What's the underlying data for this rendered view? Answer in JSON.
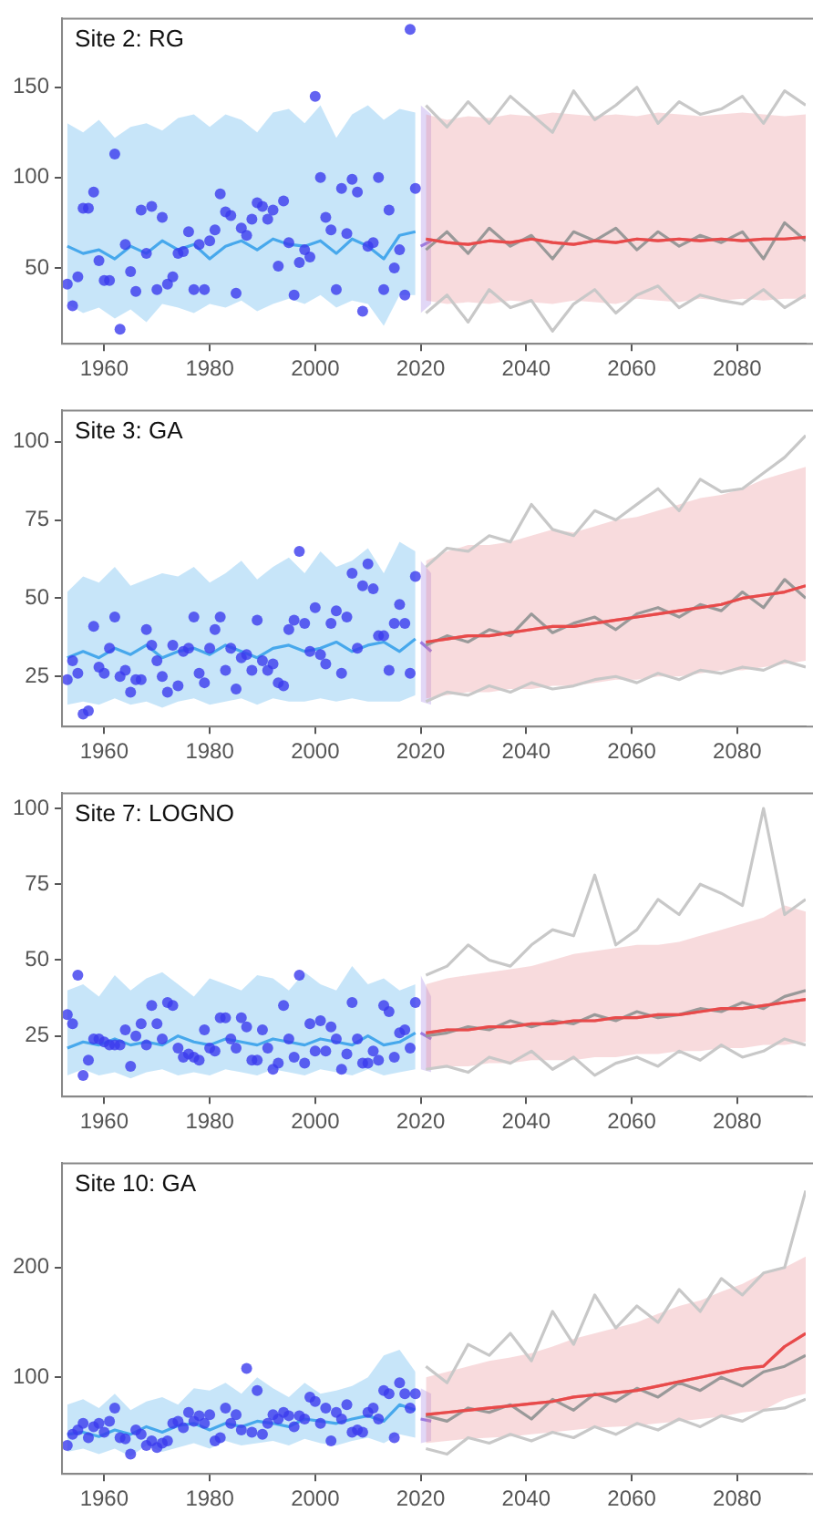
{
  "chart_data": [
    {
      "type": "line",
      "title": "Site 2: RG",
      "xlim": [
        1952,
        2093
      ],
      "ylim": [
        8,
        188
      ],
      "xticks": [
        1960,
        1980,
        2000,
        2020,
        2040,
        2060,
        2080
      ],
      "yticks": [
        50,
        100,
        150
      ],
      "series": [
        {
          "type": "line",
          "color": "#47a8ec",
          "x": [
            1953,
            1956,
            1959,
            1962,
            1965,
            1968,
            1971,
            1974,
            1977,
            1980,
            1983,
            1986,
            1989,
            1992,
            1995,
            1998,
            2001,
            2004,
            2007,
            2010,
            2013,
            2016,
            2019
          ],
          "values": [
            62,
            58,
            60,
            55,
            62,
            58,
            65,
            60,
            63,
            55,
            62,
            65,
            60,
            66,
            63,
            62,
            65,
            58,
            66,
            62,
            55,
            68,
            70
          ],
          "lower": [
            30,
            25,
            28,
            22,
            27,
            20,
            30,
            28,
            25,
            30,
            28,
            32,
            26,
            30,
            33,
            30,
            35,
            28,
            32,
            30,
            18,
            35,
            35
          ],
          "upper": [
            130,
            125,
            132,
            122,
            128,
            130,
            126,
            133,
            135,
            128,
            135,
            132,
            125,
            136,
            138,
            130,
            140,
            122,
            135,
            140,
            132,
            138,
            136
          ]
        },
        {
          "type": "scatter",
          "marker": "circle",
          "color": "#3b3bee",
          "x": [
            1953,
            1954,
            1955,
            1956,
            1957,
            1958,
            1959,
            1960,
            1961,
            1962,
            1963,
            1964,
            1965,
            1966,
            1967,
            1968,
            1969,
            1970,
            1971,
            1972,
            1973,
            1974,
            1975,
            1976,
            1977,
            1978,
            1979,
            1980,
            1981,
            1982,
            1983,
            1984,
            1985,
            1986,
            1987,
            1988,
            1989,
            1990,
            1991,
            1992,
            1993,
            1994,
            1995,
            1996,
            1997,
            1998,
            1999,
            2000,
            2001,
            2002,
            2003,
            2004,
            2005,
            2006,
            2007,
            2008,
            2009,
            2010,
            2011,
            2012,
            2013,
            2014,
            2015,
            2016,
            2017,
            2018,
            2019
          ],
          "values": [
            41,
            29,
            45,
            83,
            83,
            92,
            54,
            43,
            43,
            113,
            16,
            63,
            48,
            37,
            82,
            58,
            84,
            38,
            78,
            41,
            45,
            58,
            59,
            70,
            38,
            63,
            38,
            65,
            71,
            91,
            81,
            79,
            36,
            72,
            68,
            77,
            86,
            84,
            77,
            82,
            51,
            87,
            64,
            35,
            53,
            60,
            56,
            145,
            100,
            78,
            71,
            38,
            94,
            69,
            99,
            92,
            26,
            62,
            64,
            100,
            38,
            82,
            50,
            60,
            35,
            182,
            94
          ]
        },
        {
          "type": "line",
          "color": "#9b7be0",
          "x": [
            2020,
            2022
          ],
          "values": [
            62,
            65
          ],
          "lower": [
            25,
            30
          ],
          "upper": [
            140,
            135
          ]
        },
        {
          "type": "line",
          "color": "#e8888f",
          "x": [
            2021,
            2025,
            2029,
            2033,
            2037,
            2041,
            2045,
            2049,
            2053,
            2057,
            2061,
            2065,
            2069,
            2073,
            2077,
            2081,
            2085,
            2089,
            2093
          ],
          "values": [
            66,
            64,
            63,
            65,
            64,
            66,
            64,
            63,
            65,
            64,
            66,
            65,
            66,
            65,
            66,
            65,
            66,
            66,
            67
          ],
          "lower": [
            32,
            30,
            31,
            30,
            32,
            31,
            30,
            32,
            31,
            30,
            33,
            32,
            31,
            33,
            32,
            33,
            32,
            33,
            33
          ],
          "upper": [
            135,
            132,
            134,
            133,
            135,
            134,
            136,
            135,
            134,
            135,
            134,
            136,
            135,
            134,
            135,
            136,
            135,
            134,
            135
          ]
        },
        {
          "type": "line",
          "color": "#c8c8c8",
          "x": [
            2021,
            2025,
            2029,
            2033,
            2037,
            2041,
            2045,
            2049,
            2053,
            2057,
            2061,
            2065,
            2069,
            2073,
            2077,
            2081,
            2085,
            2089,
            2093
          ],
          "values": [
            140,
            128,
            142,
            130,
            145,
            135,
            125,
            148,
            132,
            140,
            150,
            130,
            142,
            135,
            138,
            145,
            130,
            148,
            140
          ]
        },
        {
          "type": "line",
          "color": "#c8c8c8",
          "x": [
            2021,
            2025,
            2029,
            2033,
            2037,
            2041,
            2045,
            2049,
            2053,
            2057,
            2061,
            2065,
            2069,
            2073,
            2077,
            2081,
            2085,
            2089,
            2093
          ],
          "values": [
            25,
            35,
            20,
            38,
            28,
            32,
            15,
            30,
            38,
            25,
            35,
            40,
            28,
            35,
            32,
            30,
            38,
            28,
            35
          ]
        },
        {
          "type": "line",
          "color": "#999999",
          "x": [
            2021,
            2025,
            2029,
            2033,
            2037,
            2041,
            2045,
            2049,
            2053,
            2057,
            2061,
            2065,
            2069,
            2073,
            2077,
            2081,
            2085,
            2089,
            2093
          ],
          "values": [
            60,
            70,
            58,
            72,
            62,
            68,
            55,
            70,
            65,
            72,
            60,
            70,
            62,
            68,
            64,
            70,
            55,
            75,
            65
          ]
        },
        {
          "type": "line",
          "color": "#e84a4a",
          "x": [
            2021,
            2025,
            2029,
            2033,
            2037,
            2041,
            2045,
            2049,
            2053,
            2057,
            2061,
            2065,
            2069,
            2073,
            2077,
            2081,
            2085,
            2089,
            2093
          ],
          "values": [
            66,
            64,
            63,
            65,
            64,
            66,
            64,
            63,
            65,
            64,
            66,
            65,
            66,
            65,
            66,
            65,
            66,
            66,
            67
          ]
        }
      ]
    },
    {
      "type": "line",
      "title": "Site 3: GA",
      "xlim": [
        1952,
        2093
      ],
      "ylim": [
        9,
        110
      ],
      "xticks": [
        1960,
        1980,
        2000,
        2020,
        2040,
        2060,
        2080
      ],
      "yticks": [
        25,
        50,
        75,
        100
      ],
      "series": [
        {
          "type": "line",
          "color": "#47a8ec",
          "x": [
            1953,
            1956,
            1959,
            1962,
            1965,
            1968,
            1971,
            1974,
            1977,
            1980,
            1983,
            1986,
            1989,
            1992,
            1995,
            1998,
            2001,
            2004,
            2007,
            2010,
            2013,
            2016,
            2019
          ],
          "values": [
            31,
            33,
            31,
            34,
            32,
            35,
            31,
            33,
            34,
            32,
            35,
            33,
            31,
            34,
            35,
            33,
            34,
            36,
            33,
            35,
            36,
            33,
            37
          ],
          "lower": [
            16,
            17,
            16,
            18,
            16,
            17,
            15,
            17,
            18,
            16,
            17,
            18,
            16,
            18,
            17,
            17,
            18,
            17,
            18,
            17,
            17,
            17,
            19
          ],
          "upper": [
            52,
            57,
            55,
            60,
            54,
            56,
            58,
            57,
            60,
            55,
            58,
            62,
            56,
            60,
            63,
            58,
            65,
            60,
            62,
            66,
            58,
            68,
            65
          ]
        },
        {
          "type": "scatter",
          "marker": "circle",
          "color": "#3b3bee",
          "x": [
            1953,
            1954,
            1955,
            1956,
            1957,
            1958,
            1959,
            1960,
            1961,
            1962,
            1963,
            1964,
            1965,
            1966,
            1967,
            1968,
            1969,
            1970,
            1971,
            1972,
            1973,
            1974,
            1975,
            1976,
            1977,
            1978,
            1979,
            1980,
            1981,
            1982,
            1983,
            1984,
            1985,
            1986,
            1987,
            1988,
            1989,
            1990,
            1991,
            1992,
            1993,
            1994,
            1995,
            1996,
            1997,
            1998,
            1999,
            2000,
            2001,
            2002,
            2003,
            2004,
            2005,
            2006,
            2007,
            2008,
            2009,
            2010,
            2011,
            2012,
            2013,
            2014,
            2015,
            2016,
            2017,
            2018,
            2019
          ],
          "values": [
            24,
            30,
            26,
            13,
            14,
            41,
            28,
            26,
            34,
            44,
            25,
            27,
            20,
            24,
            24,
            40,
            35,
            30,
            25,
            20,
            35,
            22,
            33,
            34,
            44,
            26,
            23,
            34,
            40,
            44,
            27,
            34,
            21,
            31,
            32,
            27,
            43,
            30,
            27,
            29,
            23,
            22,
            40,
            43,
            65,
            42,
            33,
            47,
            32,
            29,
            42,
            46,
            26,
            44,
            58,
            34,
            54,
            61,
            53,
            38,
            38,
            27,
            42,
            48,
            42,
            26,
            57
          ]
        },
        {
          "type": "line",
          "color": "#9b7be0",
          "x": [
            2020,
            2022
          ],
          "values": [
            36,
            33
          ],
          "lower": [
            17,
            16
          ],
          "upper": [
            62,
            58
          ]
        },
        {
          "type": "line",
          "color": "#e8888f",
          "x": [
            2021,
            2025,
            2029,
            2033,
            2037,
            2041,
            2045,
            2049,
            2053,
            2057,
            2061,
            2065,
            2069,
            2073,
            2077,
            2081,
            2085,
            2089,
            2093
          ],
          "values": [
            36,
            37,
            38,
            38,
            39,
            40,
            41,
            41,
            42,
            43,
            44,
            45,
            46,
            47,
            48,
            50,
            51,
            52,
            54
          ],
          "lower": [
            18,
            19,
            20,
            20,
            21,
            21,
            22,
            22,
            23,
            24,
            24,
            25,
            25,
            26,
            27,
            27,
            28,
            29,
            30
          ],
          "upper": [
            62,
            65,
            67,
            67,
            68,
            70,
            72,
            71,
            73,
            75,
            76,
            78,
            80,
            82,
            83,
            85,
            88,
            90,
            92
          ]
        },
        {
          "type": "line",
          "color": "#c8c8c8",
          "x": [
            2021,
            2025,
            2029,
            2033,
            2037,
            2041,
            2045,
            2049,
            2053,
            2057,
            2061,
            2065,
            2069,
            2073,
            2077,
            2081,
            2085,
            2089,
            2093
          ],
          "values": [
            60,
            66,
            65,
            70,
            68,
            80,
            72,
            70,
            78,
            75,
            80,
            85,
            78,
            88,
            84,
            85,
            90,
            95,
            102
          ]
        },
        {
          "type": "line",
          "color": "#c8c8c8",
          "x": [
            2021,
            2025,
            2029,
            2033,
            2037,
            2041,
            2045,
            2049,
            2053,
            2057,
            2061,
            2065,
            2069,
            2073,
            2077,
            2081,
            2085,
            2089,
            2093
          ],
          "values": [
            17,
            20,
            19,
            22,
            20,
            23,
            21,
            22,
            24,
            25,
            23,
            26,
            24,
            27,
            26,
            28,
            27,
            30,
            28
          ]
        },
        {
          "type": "line",
          "color": "#999999",
          "x": [
            2021,
            2025,
            2029,
            2033,
            2037,
            2041,
            2045,
            2049,
            2053,
            2057,
            2061,
            2065,
            2069,
            2073,
            2077,
            2081,
            2085,
            2089,
            2093
          ],
          "values": [
            35,
            38,
            36,
            40,
            38,
            45,
            39,
            42,
            44,
            40,
            45,
            47,
            44,
            48,
            46,
            52,
            47,
            56,
            50
          ]
        },
        {
          "type": "line",
          "color": "#e84a4a",
          "x": [
            2021,
            2025,
            2029,
            2033,
            2037,
            2041,
            2045,
            2049,
            2053,
            2057,
            2061,
            2065,
            2069,
            2073,
            2077,
            2081,
            2085,
            2089,
            2093
          ],
          "values": [
            36,
            37,
            38,
            38,
            39,
            40,
            41,
            41,
            42,
            43,
            44,
            45,
            46,
            47,
            48,
            50,
            51,
            52,
            54
          ]
        }
      ]
    },
    {
      "type": "line",
      "title": "Site 7: LOGNO",
      "xlim": [
        1952,
        2093
      ],
      "ylim": [
        5,
        105
      ],
      "xticks": [
        1960,
        1980,
        2000,
        2020,
        2040,
        2060,
        2080
      ],
      "yticks": [
        25,
        50,
        75,
        100
      ],
      "series": [
        {
          "type": "line",
          "color": "#47a8ec",
          "x": [
            1953,
            1956,
            1959,
            1962,
            1965,
            1968,
            1971,
            1974,
            1977,
            1980,
            1983,
            1986,
            1989,
            1992,
            1995,
            1998,
            2001,
            2004,
            2007,
            2010,
            2013,
            2016,
            2019
          ],
          "values": [
            21,
            23,
            22,
            24,
            22,
            23,
            22,
            25,
            23,
            22,
            24,
            23,
            22,
            24,
            23,
            22,
            24,
            23,
            22,
            25,
            22,
            23,
            26
          ],
          "lower": [
            12,
            14,
            12,
            13,
            11,
            13,
            14,
            12,
            13,
            12,
            14,
            13,
            12,
            14,
            13,
            12,
            14,
            13,
            12,
            14,
            12,
            13,
            14
          ],
          "upper": [
            40,
            42,
            38,
            45,
            40,
            44,
            46,
            42,
            38,
            44,
            42,
            40,
            45,
            44,
            40,
            46,
            42,
            40,
            48,
            42,
            44,
            40,
            42
          ]
        },
        {
          "type": "scatter",
          "marker": "circle",
          "color": "#3b3bee",
          "x": [
            1953,
            1954,
            1955,
            1956,
            1957,
            1958,
            1959,
            1960,
            1961,
            1962,
            1963,
            1964,
            1965,
            1966,
            1967,
            1968,
            1969,
            1970,
            1971,
            1972,
            1973,
            1974,
            1975,
            1976,
            1977,
            1978,
            1979,
            1980,
            1981,
            1982,
            1983,
            1984,
            1985,
            1986,
            1987,
            1988,
            1989,
            1990,
            1991,
            1992,
            1993,
            1994,
            1995,
            1996,
            1997,
            1998,
            1999,
            2000,
            2001,
            2002,
            2003,
            2004,
            2005,
            2006,
            2007,
            2008,
            2009,
            2010,
            2011,
            2012,
            2013,
            2014,
            2015,
            2016,
            2017,
            2018,
            2019
          ],
          "values": [
            32,
            29,
            45,
            12,
            17,
            24,
            24,
            23,
            22,
            22,
            22,
            27,
            15,
            25,
            29,
            22,
            35,
            29,
            24,
            36,
            35,
            21,
            18,
            19,
            18,
            17,
            27,
            21,
            20,
            31,
            31,
            24,
            21,
            31,
            28,
            17,
            17,
            27,
            21,
            14,
            16,
            35,
            24,
            18,
            45,
            16,
            29,
            20,
            30,
            20,
            28,
            24,
            14,
            19,
            36,
            24,
            16,
            16,
            20,
            17,
            35,
            33,
            18,
            26,
            27,
            21,
            36
          ]
        },
        {
          "type": "line",
          "color": "#9b7be0",
          "x": [
            2020,
            2022
          ],
          "values": [
            26,
            24
          ],
          "lower": [
            14,
            13
          ],
          "upper": [
            45,
            38
          ]
        },
        {
          "type": "line",
          "color": "#e8888f",
          "x": [
            2021,
            2025,
            2029,
            2033,
            2037,
            2041,
            2045,
            2049,
            2053,
            2057,
            2061,
            2065,
            2069,
            2073,
            2077,
            2081,
            2085,
            2089,
            2093
          ],
          "values": [
            26,
            27,
            27,
            28,
            28,
            29,
            29,
            30,
            30,
            31,
            31,
            32,
            32,
            33,
            34,
            34,
            35,
            36,
            37
          ],
          "lower": [
            14,
            15,
            15,
            16,
            16,
            17,
            17,
            17,
            18,
            18,
            19,
            19,
            20,
            20,
            21,
            21,
            22,
            22,
            23
          ],
          "upper": [
            42,
            44,
            45,
            46,
            47,
            48,
            50,
            52,
            53,
            54,
            55,
            55,
            56,
            58,
            60,
            62,
            64,
            68,
            66
          ]
        },
        {
          "type": "line",
          "color": "#c8c8c8",
          "x": [
            2021,
            2025,
            2029,
            2033,
            2037,
            2041,
            2045,
            2049,
            2053,
            2057,
            2061,
            2065,
            2069,
            2073,
            2077,
            2081,
            2085,
            2089,
            2093
          ],
          "values": [
            45,
            48,
            55,
            50,
            48,
            55,
            60,
            58,
            78,
            55,
            60,
            70,
            65,
            75,
            72,
            68,
            100,
            65,
            70
          ]
        },
        {
          "type": "line",
          "color": "#c8c8c8",
          "x": [
            2021,
            2025,
            2029,
            2033,
            2037,
            2041,
            2045,
            2049,
            2053,
            2057,
            2061,
            2065,
            2069,
            2073,
            2077,
            2081,
            2085,
            2089,
            2093
          ],
          "values": [
            14,
            15,
            13,
            18,
            16,
            20,
            14,
            18,
            12,
            16,
            18,
            15,
            20,
            17,
            22,
            18,
            20,
            24,
            22
          ]
        },
        {
          "type": "line",
          "color": "#999999",
          "x": [
            2021,
            2025,
            2029,
            2033,
            2037,
            2041,
            2045,
            2049,
            2053,
            2057,
            2061,
            2065,
            2069,
            2073,
            2077,
            2081,
            2085,
            2089,
            2093
          ],
          "values": [
            25,
            26,
            28,
            27,
            30,
            28,
            30,
            29,
            32,
            30,
            33,
            31,
            32,
            34,
            33,
            36,
            34,
            38,
            40
          ]
        },
        {
          "type": "line",
          "color": "#e84a4a",
          "x": [
            2021,
            2025,
            2029,
            2033,
            2037,
            2041,
            2045,
            2049,
            2053,
            2057,
            2061,
            2065,
            2069,
            2073,
            2077,
            2081,
            2085,
            2089,
            2093
          ],
          "values": [
            26,
            27,
            27,
            28,
            28,
            29,
            29,
            30,
            30,
            31,
            31,
            32,
            32,
            33,
            34,
            34,
            35,
            36,
            37
          ]
        }
      ]
    },
    {
      "type": "line",
      "title": "Site 10: GA",
      "xlim": [
        1952,
        2093
      ],
      "ylim": [
        12,
        295
      ],
      "xticks": [
        1960,
        1980,
        2000,
        2020,
        2040,
        2060,
        2080
      ],
      "yticks": [
        100,
        200
      ],
      "series": [
        {
          "type": "line",
          "color": "#47a8ec",
          "x": [
            1953,
            1956,
            1959,
            1962,
            1965,
            1968,
            1971,
            1974,
            1977,
            1980,
            1983,
            1986,
            1989,
            1992,
            1995,
            1998,
            2001,
            2004,
            2007,
            2010,
            2013,
            2016,
            2019
          ],
          "values": [
            48,
            50,
            46,
            52,
            48,
            55,
            50,
            56,
            58,
            52,
            58,
            55,
            60,
            58,
            55,
            62,
            60,
            58,
            62,
            65,
            60,
            75,
            70
          ],
          "lower": [
            32,
            35,
            30,
            35,
            28,
            38,
            32,
            36,
            40,
            35,
            42,
            38,
            40,
            42,
            38,
            44,
            40,
            38,
            42,
            45,
            40,
            48,
            45
          ],
          "upper": [
            75,
            80,
            72,
            85,
            70,
            78,
            82,
            75,
            90,
            88,
            95,
            85,
            100,
            90,
            82,
            95,
            85,
            88,
            92,
            100,
            120,
            125,
            105
          ]
        },
        {
          "type": "scatter",
          "marker": "circle",
          "color": "#3b3bee",
          "x": [
            1953,
            1954,
            1955,
            1956,
            1957,
            1958,
            1959,
            1960,
            1961,
            1962,
            1963,
            1964,
            1965,
            1966,
            1967,
            1968,
            1969,
            1970,
            1971,
            1972,
            1973,
            1974,
            1975,
            1976,
            1977,
            1978,
            1979,
            1980,
            1981,
            1982,
            1983,
            1984,
            1985,
            1986,
            1987,
            1988,
            1989,
            1990,
            1991,
            1992,
            1993,
            1994,
            1995,
            1996,
            1997,
            1998,
            1999,
            2000,
            2001,
            2002,
            2003,
            2004,
            2005,
            2006,
            2007,
            2008,
            2009,
            2010,
            2011,
            2012,
            2013,
            2014,
            2015,
            2016,
            2017,
            2018,
            2019
          ],
          "values": [
            38,
            48,
            52,
            58,
            45,
            55,
            58,
            50,
            60,
            72,
            45,
            44,
            30,
            52,
            48,
            38,
            42,
            36,
            40,
            42,
            58,
            60,
            54,
            68,
            60,
            65,
            58,
            66,
            42,
            45,
            72,
            58,
            66,
            52,
            108,
            50,
            88,
            48,
            58,
            66,
            62,
            68,
            65,
            55,
            65,
            62,
            82,
            78,
            58,
            72,
            42,
            68,
            62,
            75,
            50,
            52,
            50,
            68,
            72,
            62,
            88,
            85,
            45,
            95,
            85,
            72,
            85
          ]
        },
        {
          "type": "line",
          "color": "#9b7be0",
          "x": [
            2020,
            2022
          ],
          "values": [
            62,
            60
          ],
          "lower": [
            40,
            42
          ],
          "upper": [
            90,
            85
          ]
        },
        {
          "type": "line",
          "color": "#e8888f",
          "x": [
            2021,
            2025,
            2029,
            2033,
            2037,
            2041,
            2045,
            2049,
            2053,
            2057,
            2061,
            2065,
            2069,
            2073,
            2077,
            2081,
            2085,
            2089,
            2093
          ],
          "values": [
            66,
            68,
            70,
            72,
            74,
            76,
            78,
            82,
            84,
            86,
            88,
            92,
            96,
            100,
            104,
            108,
            110,
            128,
            140
          ],
          "lower": [
            40,
            42,
            44,
            45,
            46,
            48,
            50,
            52,
            54,
            55,
            56,
            58,
            60,
            62,
            64,
            68,
            70,
            80,
            85
          ],
          "upper": [
            100,
            105,
            110,
            115,
            118,
            122,
            128,
            135,
            140,
            145,
            150,
            158,
            165,
            170,
            178,
            185,
            195,
            200,
            210
          ]
        },
        {
          "type": "line",
          "color": "#c8c8c8",
          "x": [
            2021,
            2025,
            2029,
            2033,
            2037,
            2041,
            2045,
            2049,
            2053,
            2057,
            2061,
            2065,
            2069,
            2073,
            2077,
            2081,
            2085,
            2089,
            2093
          ],
          "values": [
            110,
            95,
            130,
            120,
            140,
            115,
            160,
            130,
            175,
            145,
            165,
            150,
            180,
            160,
            190,
            175,
            195,
            200,
            270
          ]
        },
        {
          "type": "line",
          "color": "#c8c8c8",
          "x": [
            2021,
            2025,
            2029,
            2033,
            2037,
            2041,
            2045,
            2049,
            2053,
            2057,
            2061,
            2065,
            2069,
            2073,
            2077,
            2081,
            2085,
            2089,
            2093
          ],
          "values": [
            35,
            30,
            45,
            40,
            48,
            42,
            50,
            45,
            55,
            48,
            58,
            52,
            62,
            55,
            65,
            60,
            70,
            72,
            80
          ]
        },
        {
          "type": "line",
          "color": "#999999",
          "x": [
            2021,
            2025,
            2029,
            2033,
            2037,
            2041,
            2045,
            2049,
            2053,
            2057,
            2061,
            2065,
            2069,
            2073,
            2077,
            2081,
            2085,
            2089,
            2093
          ],
          "values": [
            65,
            60,
            72,
            68,
            75,
            62,
            80,
            70,
            85,
            78,
            90,
            82,
            95,
            88,
            100,
            92,
            105,
            110,
            120
          ]
        },
        {
          "type": "line",
          "color": "#e84a4a",
          "x": [
            2021,
            2025,
            2029,
            2033,
            2037,
            2041,
            2045,
            2049,
            2053,
            2057,
            2061,
            2065,
            2069,
            2073,
            2077,
            2081,
            2085,
            2089,
            2093
          ],
          "values": [
            66,
            68,
            70,
            72,
            74,
            76,
            78,
            82,
            84,
            86,
            88,
            92,
            96,
            100,
            104,
            108,
            110,
            128,
            140
          ]
        }
      ]
    }
  ]
}
